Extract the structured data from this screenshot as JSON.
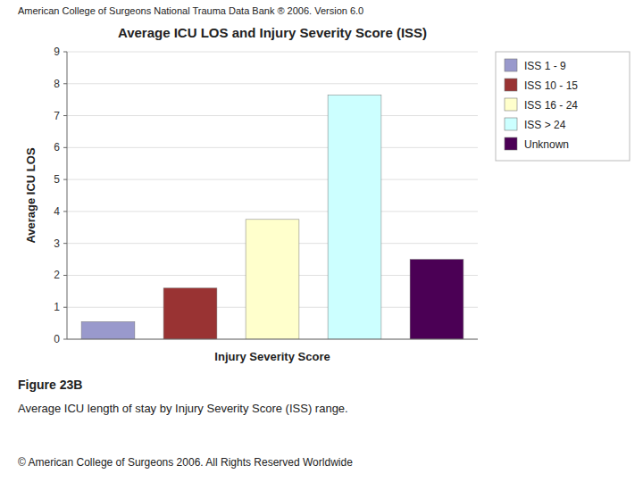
{
  "chart_data": {
    "type": "bar",
    "title": "Average ICU LOS and Injury Severity Score (ISS)",
    "xlabel": "Injury Severity Score",
    "ylabel": "Average ICU LOS",
    "annotations": [
      "American College of Surgeons National Trauma Data Bank ®  2006. Version 6.0",
      "Figure 23B",
      "Average ICU length of stay by Injury Severity Score (ISS) range.",
      "© American College of Surgeons 2006.  All Rights Reserved Worldwide"
    ],
    "categories": [
      "ISS 1 - 9",
      "ISS 10 - 15",
      "ISS 16 - 24",
      "ISS > 24",
      "Unknown"
    ],
    "values": [
      0.55,
      1.6,
      3.75,
      7.65,
      2.5
    ],
    "colors": [
      "#9999cc",
      "#993333",
      "#ffffcc",
      "#ccffff",
      "#4b0055"
    ],
    "ylim": [
      0,
      9
    ],
    "yticks": [
      0,
      1,
      2,
      3,
      4,
      5,
      6,
      7,
      8,
      9
    ],
    "grid": true,
    "legend": "upper right",
    "tick_labels": "y"
  }
}
